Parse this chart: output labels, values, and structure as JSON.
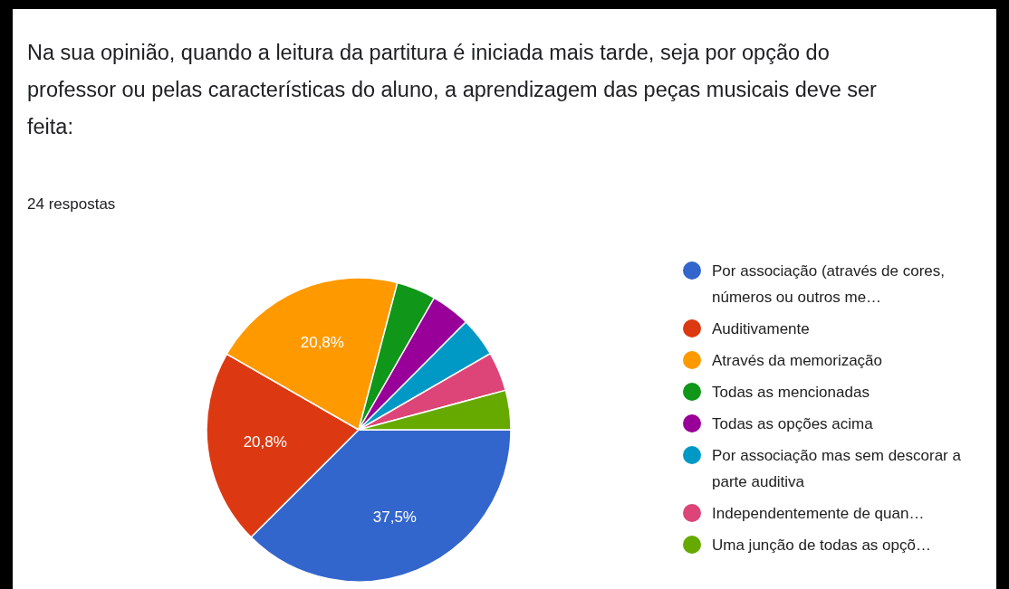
{
  "chart_data": {
    "type": "pie",
    "title": "Na sua opinião, quando a leitura da partitura é iniciada mais tarde, seja por opção do professor ou pelas características do aluno, a aprendizagem das peças musicais deve ser feita:",
    "subtitle": "24 respostas",
    "categories": [
      "Por associação (através de cores, números ou outros me…",
      "Auditivamente",
      "Através da memorização",
      "Todas as mencionadas",
      "Todas as opções acima",
      "Por associação mas sem descorar a parte auditiva",
      "Independentemente de quan…",
      "Uma junção de todas as opçõ…"
    ],
    "values": [
      37.5,
      20.8,
      20.8,
      4.18,
      4.18,
      4.18,
      4.18,
      4.18
    ],
    "colors": [
      "#3366cc",
      "#dc3912",
      "#ff9900",
      "#109618",
      "#990099",
      "#0099c6",
      "#dd4477",
      "#66aa00"
    ],
    "value_labels": [
      "37,5%",
      "20,8%",
      "20,8%",
      null,
      null,
      null,
      null,
      null
    ],
    "legend": "right"
  }
}
